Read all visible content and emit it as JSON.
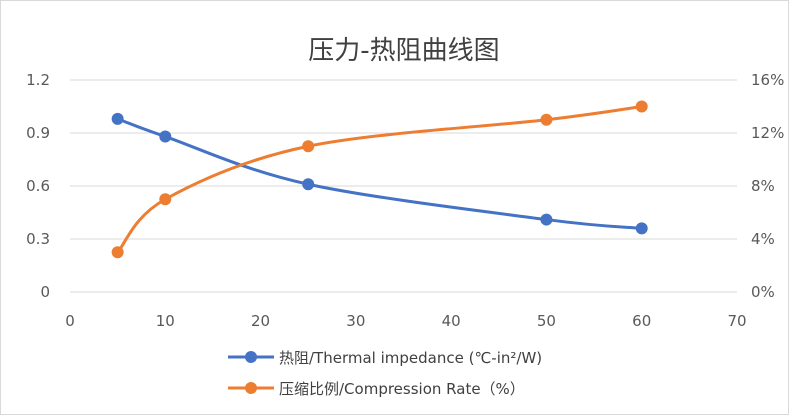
{
  "chart_data": {
    "type": "line",
    "title": "压力-热阻曲线图",
    "x": [
      5,
      10,
      25,
      50,
      60
    ],
    "xlim": [
      0,
      70
    ],
    "x_ticks": [
      "0",
      "10",
      "20",
      "30",
      "40",
      "50",
      "60",
      "70"
    ],
    "ylim_left": [
      0,
      1.2
    ],
    "y_left_ticks": [
      "0",
      "0.3",
      "0.6",
      "0.9",
      "1.2"
    ],
    "ylim_right": [
      0,
      16
    ],
    "y_right_ticks": [
      "0%",
      "4%",
      "8%",
      "12%",
      "16%"
    ],
    "grid": true,
    "legend_position": "bottom",
    "series": [
      {
        "name": "热阻/Thermal impedance (℃-in²/W)",
        "axis": "left",
        "values": [
          0.98,
          0.88,
          0.61,
          0.41,
          0.36
        ],
        "color": "#4472c4",
        "smooth": true
      },
      {
        "name": "压缩比例/Compression Rate（%）",
        "axis": "right",
        "values": [
          3,
          7,
          11,
          13,
          14
        ],
        "color": "#ed7d31",
        "smooth": true
      }
    ]
  }
}
